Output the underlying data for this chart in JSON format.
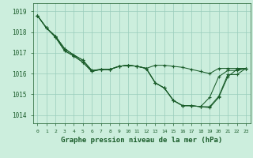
{
  "xlabel": "Graphe pression niveau de la mer (hPa)",
  "bg_color": "#cceedd",
  "plot_bg_color": "#cceedd",
  "grid_color": "#99ccbb",
  "line_color": "#1a5c2a",
  "ylim": [
    1013.6,
    1019.4
  ],
  "xlim": [
    -0.5,
    23.5
  ],
  "yticks": [
    1014,
    1015,
    1016,
    1017,
    1018,
    1019
  ],
  "xticks": [
    0,
    1,
    2,
    3,
    4,
    5,
    6,
    7,
    8,
    9,
    10,
    11,
    12,
    13,
    14,
    15,
    16,
    17,
    18,
    19,
    20,
    21,
    22,
    23
  ],
  "series": [
    [
      1018.8,
      1018.2,
      1017.8,
      1017.2,
      1016.9,
      1016.65,
      1016.15,
      1016.2,
      1016.2,
      1016.35,
      1016.4,
      1016.35,
      1016.25,
      1015.55,
      1015.3,
      1014.7,
      1014.45,
      1014.45,
      1014.4,
      1014.4,
      1014.9,
      1015.95,
      1015.95,
      1016.25
    ],
    [
      1018.8,
      1018.2,
      1017.8,
      1017.2,
      1016.9,
      1016.65,
      1016.15,
      1016.2,
      1016.2,
      1016.35,
      1016.4,
      1016.35,
      1016.25,
      1016.4,
      1016.4,
      1016.35,
      1016.3,
      1016.2,
      1016.1,
      1016.0,
      1016.25,
      1016.25,
      1016.25,
      1016.25
    ],
    [
      1018.8,
      1018.2,
      1017.75,
      1017.1,
      1016.85,
      1016.55,
      1016.1,
      1016.2,
      1016.2,
      1016.35,
      1016.4,
      1016.35,
      1016.25,
      1015.55,
      1015.3,
      1014.7,
      1014.45,
      1014.45,
      1014.4,
      1014.85,
      1015.85,
      1016.15,
      1016.15,
      1016.25
    ],
    [
      1018.8,
      1018.2,
      1017.75,
      1017.1,
      1016.85,
      1016.55,
      1016.1,
      1016.2,
      1016.2,
      1016.35,
      1016.4,
      1016.35,
      1016.25,
      1015.55,
      1015.3,
      1014.7,
      1014.45,
      1014.45,
      1014.4,
      1014.35,
      1014.85,
      1015.85,
      1016.2,
      1016.25
    ]
  ]
}
